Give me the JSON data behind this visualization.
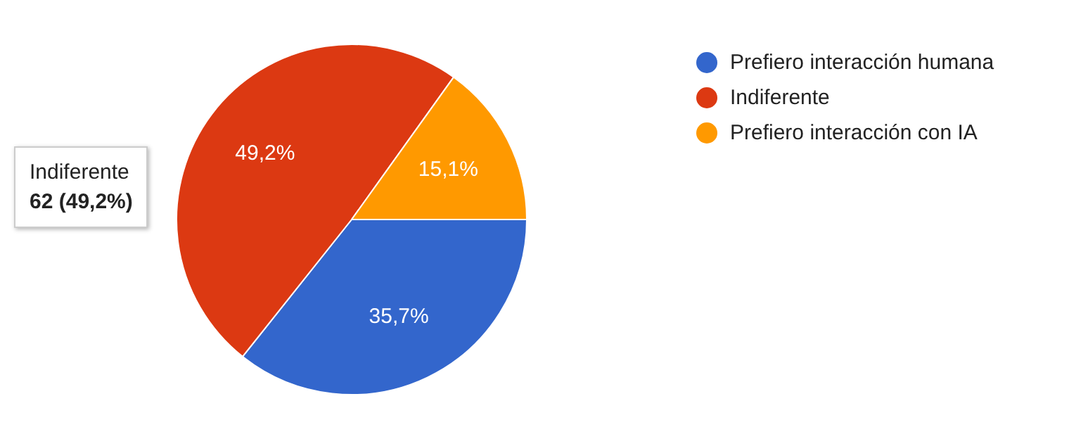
{
  "chart_data": {
    "type": "pie",
    "categories": [
      "Prefiero interacción humana",
      "Indiferente",
      "Prefiero interacción con IA"
    ],
    "values": [
      35.7,
      49.2,
      15.1
    ],
    "colors": [
      "#3366cc",
      "#dc3912",
      "#ff9900"
    ],
    "value_labels": [
      "35,7%",
      "49,2%",
      "15,1%"
    ],
    "legend": "top right",
    "annotations": [
      "Indiferente",
      "62 (49,2%)"
    ]
  }
}
